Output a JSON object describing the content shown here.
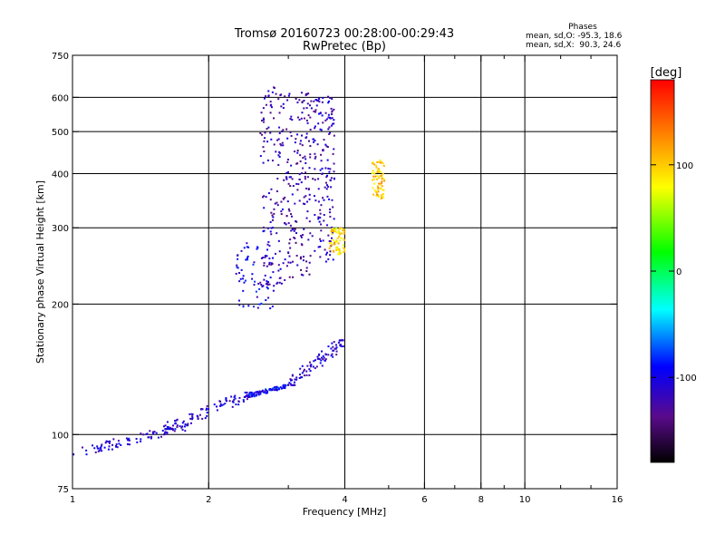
{
  "chart_data": {
    "type": "scatter",
    "title": "Tromsø 20160723 00:28:00-00:29:43",
    "subtitle": "RwPretec (Bp)",
    "xlabel": "Frequency [MHz]",
    "ylabel": "Stationary phase Virtual Height [km]",
    "x_scale": "log",
    "y_scale": "log",
    "xlim": [
      1,
      16
    ],
    "ylim": [
      75,
      750
    ],
    "x_ticks": [
      1,
      2,
      4,
      6,
      8,
      10,
      16
    ],
    "x_minor_ticks": [
      3,
      5,
      7,
      9,
      12,
      14
    ],
    "x_grid": [
      2,
      4,
      6,
      8,
      10
    ],
    "y_ticks": [
      75,
      100,
      200,
      300,
      400,
      500,
      600,
      750
    ],
    "y_grid": [
      100,
      200,
      300,
      400,
      500,
      600
    ],
    "grid": true,
    "phases_box": {
      "title": "Phases",
      "line_o": "mean, sd,O: -95.3, 18.6",
      "line_x": "mean, sd,X:  90.3, 24.6"
    },
    "colorbar": {
      "label": "[deg]",
      "range": [
        -180,
        180
      ],
      "ticks": [
        100,
        0,
        -100
      ],
      "colors": [
        "#000000",
        "#5a0a8c",
        "#0000ff",
        "#00ffff",
        "#00ff00",
        "#ffff00",
        "#ff8000",
        "#ff0000"
      ]
    },
    "series_regions": [
      {
        "x": [
          1.0,
          1.8
        ],
        "y": [
          90,
          105
        ],
        "phase": -110,
        "kind": "trace"
      },
      {
        "x": [
          1.6,
          2.5
        ],
        "y": [
          103,
          125
        ],
        "phase": -105,
        "kind": "trace"
      },
      {
        "x": [
          2.4,
          3.0
        ],
        "y": [
          122,
          130
        ],
        "phase": -95,
        "kind": "trace"
      },
      {
        "x": [
          3.0,
          4.0
        ],
        "y": [
          130,
          165
        ],
        "phase": -110,
        "kind": "trace"
      },
      {
        "x": [
          2.3,
          2.8
        ],
        "y": [
          195,
          280
        ],
        "phase": -100,
        "kind": "cluster"
      },
      {
        "x": [
          2.6,
          3.0
        ],
        "y": [
          220,
          640
        ],
        "phase": -120,
        "kind": "column"
      },
      {
        "x": [
          3.0,
          3.4
        ],
        "y": [
          230,
          620
        ],
        "phase": -125,
        "kind": "column"
      },
      {
        "x": [
          3.4,
          3.8
        ],
        "y": [
          250,
          610
        ],
        "phase": -115,
        "kind": "column"
      },
      {
        "x": [
          3.7,
          4.0
        ],
        "y": [
          260,
          300
        ],
        "phase": 95,
        "kind": "cluster"
      },
      {
        "x": [
          4.6,
          4.9
        ],
        "y": [
          350,
          430
        ],
        "phase": 100,
        "kind": "cluster"
      }
    ]
  }
}
